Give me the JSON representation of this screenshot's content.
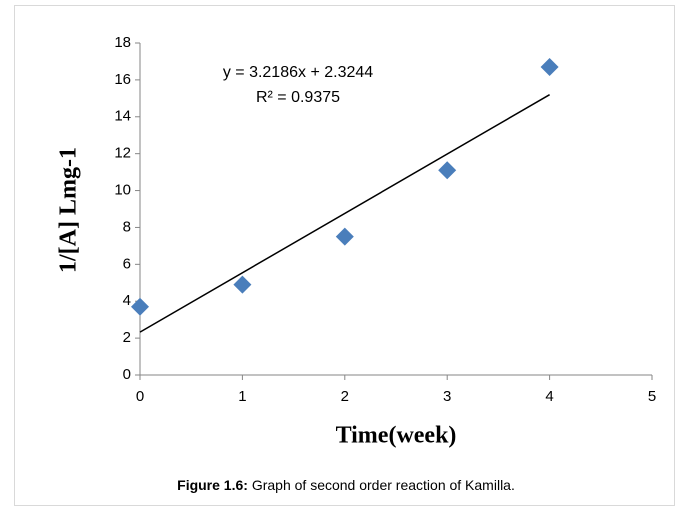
{
  "chart_data": {
    "type": "scatter",
    "x_label": "Time(week)",
    "y_label": "1/[A] Lmg-1",
    "x": [
      0,
      1,
      2,
      3,
      4
    ],
    "series": [
      {
        "color": "#4a7ebb",
        "values": [
          3.7,
          4.9,
          7.5,
          11.1,
          16.7
        ]
      }
    ],
    "xlim": [
      0,
      5
    ],
    "xticks": [
      0,
      1,
      2,
      3,
      4,
      5
    ],
    "ylim": [
      0,
      18
    ],
    "yticks": [
      0,
      2,
      4,
      6,
      8,
      10,
      12,
      14,
      16,
      18
    ],
    "trendline": {
      "slope": 3.2186,
      "intercept": 2.3244,
      "label": "y = 3.2186x + 2.3244",
      "r2_label": "R² = 0.9375",
      "color": "#000000"
    },
    "caption_label": "Figure 1.6:",
    "caption_text": " Graph of second order reaction of Kamilla."
  }
}
